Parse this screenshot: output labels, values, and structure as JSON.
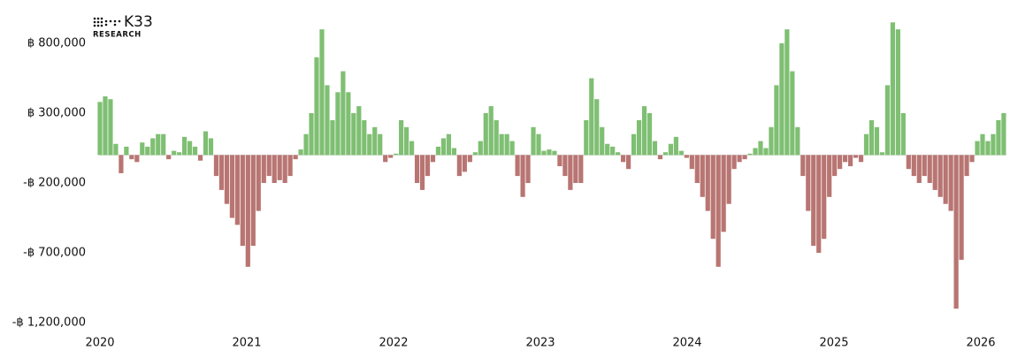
{
  "chart_data": {
    "type": "bar",
    "brand": "K33",
    "brand_sub": "RESEARCH",
    "x": [
      2020,
      2020.036,
      2020.072,
      2020.108,
      2020.144,
      2020.18,
      2020.216,
      2020.252,
      2020.288,
      2020.324,
      2020.36,
      2020.396,
      2020.432,
      2020.468,
      2020.504,
      2020.54,
      2020.576,
      2020.612,
      2020.648,
      2020.684,
      2020.72,
      2020.756,
      2020.792,
      2020.828,
      2020.864,
      2020.9,
      2020.936,
      2020.972,
      2021.008,
      2021.044,
      2021.08,
      2021.116,
      2021.152,
      2021.188,
      2021.224,
      2021.26,
      2021.296,
      2021.332,
      2021.368,
      2021.404,
      2021.44,
      2021.476,
      2021.512,
      2021.548,
      2021.584,
      2021.62,
      2021.656,
      2021.692,
      2021.728,
      2021.764,
      2021.8,
      2021.836,
      2021.872,
      2021.908,
      2021.944,
      2021.98,
      2022.016,
      2022.052,
      2022.088,
      2022.124,
      2022.16,
      2022.196,
      2022.232,
      2022.268,
      2022.304,
      2022.34,
      2022.376,
      2022.412,
      2022.448,
      2022.484,
      2022.52,
      2022.556,
      2022.592,
      2022.628,
      2022.664,
      2022.7,
      2022.736,
      2022.772,
      2022.808,
      2022.844,
      2022.88,
      2022.916,
      2022.952,
      2022.988,
      2023.024,
      2023.06,
      2023.096,
      2023.132,
      2023.168,
      2023.204,
      2023.24,
      2023.276,
      2023.312,
      2023.348,
      2023.384,
      2023.42,
      2023.456,
      2023.492,
      2023.528,
      2023.564,
      2023.6,
      2023.636,
      2023.672,
      2023.708,
      2023.744,
      2023.78,
      2023.816,
      2023.852,
      2023.888,
      2023.924,
      2023.96,
      2023.996,
      2024.032,
      2024.068,
      2024.104,
      2024.14,
      2024.176,
      2024.212,
      2024.248,
      2024.284,
      2024.32,
      2024.356,
      2024.392,
      2024.428,
      2024.464,
      2024.5,
      2024.536,
      2024.572,
      2024.608,
      2024.644,
      2024.68,
      2024.716,
      2024.752,
      2024.788,
      2024.824,
      2024.86,
      2024.896,
      2024.932,
      2024.968,
      2025.004,
      2025.04,
      2025.076,
      2025.112,
      2025.148,
      2025.184,
      2025.22,
      2025.256,
      2025.292,
      2025.328,
      2025.364,
      2025.4,
      2025.436,
      2025.472,
      2025.508,
      2025.544,
      2025.58,
      2025.616,
      2025.652,
      2025.688,
      2025.724,
      2025.76,
      2025.796,
      2025.832,
      2025.868,
      2025.904,
      2025.94,
      2025.976,
      2026.012,
      2026.048,
      2026.084,
      2026.12,
      2026.156
    ],
    "values": [
      380000,
      420000,
      400000,
      80000,
      -130000,
      60000,
      -30000,
      -50000,
      90000,
      60000,
      120000,
      150000,
      150000,
      -30000,
      30000,
      20000,
      130000,
      100000,
      60000,
      -40000,
      170000,
      120000,
      -150000,
      -250000,
      -350000,
      -450000,
      -500000,
      -650000,
      -800000,
      -650000,
      -400000,
      -200000,
      -150000,
      -200000,
      -180000,
      -200000,
      -150000,
      -30000,
      40000,
      150000,
      300000,
      700000,
      900000,
      500000,
      250000,
      450000,
      600000,
      450000,
      300000,
      350000,
      250000,
      150000,
      200000,
      150000,
      -50000,
      -20000,
      10000,
      250000,
      200000,
      100000,
      -200000,
      -250000,
      -150000,
      -50000,
      60000,
      120000,
      150000,
      50000,
      -150000,
      -120000,
      -50000,
      20000,
      100000,
      300000,
      350000,
      250000,
      150000,
      150000,
      100000,
      -150000,
      -300000,
      -200000,
      200000,
      150000,
      30000,
      40000,
      30000,
      -80000,
      -150000,
      -250000,
      -200000,
      -200000,
      250000,
      550000,
      400000,
      200000,
      80000,
      60000,
      20000,
      -50000,
      -100000,
      150000,
      250000,
      350000,
      300000,
      100000,
      -30000,
      20000,
      80000,
      130000,
      30000,
      -20000,
      -100000,
      -200000,
      -300000,
      -400000,
      -600000,
      -800000,
      -550000,
      -350000,
      -100000,
      -50000,
      -30000,
      10000,
      50000,
      100000,
      50000,
      200000,
      500000,
      800000,
      900000,
      600000,
      200000,
      -150000,
      -400000,
      -650000,
      -700000,
      -600000,
      -300000,
      -150000,
      -100000,
      -50000,
      -80000,
      -20000,
      -50000,
      150000,
      250000,
      200000,
      20000,
      500000,
      950000,
      900000,
      300000,
      -100000,
      -150000,
      -200000,
      -150000,
      -200000,
      -250000,
      -300000,
      -350000,
      -400000,
      -1100000,
      -750000,
      -150000,
      -50000,
      100000,
      150000,
      100000,
      150000,
      250000,
      300000
    ],
    "positive_color": "#7fbf73",
    "negative_color": "#b87572",
    "xlim": [
      2020,
      2026.25
    ],
    "xticks": [
      2020,
      2021,
      2022,
      2023,
      2024,
      2025,
      2026
    ],
    "ylim": [
      -1250000,
      1000000
    ],
    "yticks": [
      {
        "value": 800000,
        "label": "฿ 800,000"
      },
      {
        "value": 300000,
        "label": "฿ 300,000"
      },
      {
        "value": -200000,
        "label": "-฿ 200,000"
      },
      {
        "value": -700000,
        "label": "-฿ 700,000"
      },
      {
        "value": -1200000,
        "label": "-฿ 1,200,000"
      }
    ],
    "grid": false
  }
}
